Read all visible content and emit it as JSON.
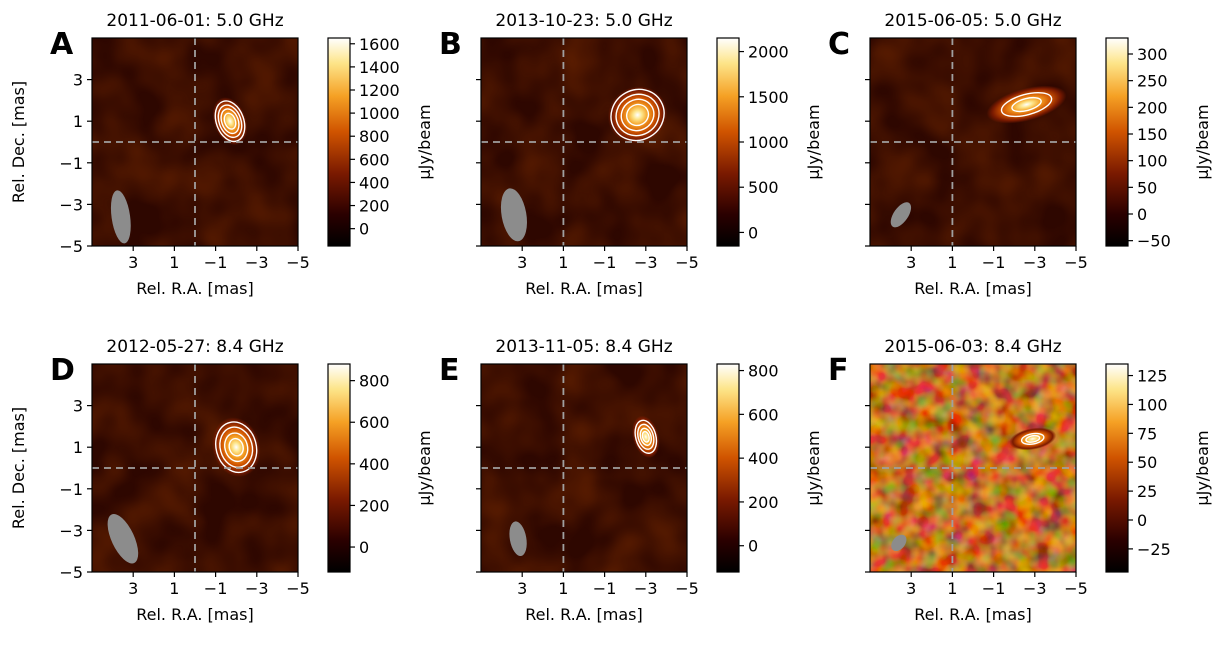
{
  "chart_data": [
    {
      "type": "heatmap",
      "panel": "A",
      "title": "2011-06-01:  5.0 GHz",
      "xlabel": "Rel. R.A. [mas]",
      "ylabel": "Rel. Dec. [mas]",
      "xlim": [
        5,
        -5
      ],
      "ylim": [
        -5,
        5
      ],
      "xticks": [
        "3",
        "1",
        "−1",
        "−3",
        "−5"
      ],
      "yticks": [
        "3",
        "1",
        "−1",
        "−3",
        "−5"
      ],
      "colorbar": {
        "label": "μJy/beam",
        "range": [
          -150,
          1650
        ],
        "ticks": [
          "0",
          "200",
          "400",
          "600",
          "800",
          "1000",
          "1200",
          "1400",
          "1600"
        ]
      },
      "peak": {
        "x": -1.7,
        "y": 1.0,
        "sx": 0.75,
        "sy": 1.15,
        "angle": -20
      },
      "beam": {
        "x": 3.6,
        "y": -3.6,
        "rx": 0.45,
        "ry": 1.3,
        "angle": -8
      },
      "crosshair": {
        "x": 0,
        "y": 0
      },
      "contour_levels": [
        0.15,
        0.3,
        0.5,
        0.75
      ]
    },
    {
      "type": "heatmap",
      "panel": "B",
      "title": "2013-10-23:  5.0 GHz",
      "xlabel": "Rel. R.A. [mas]",
      "ylabel": "",
      "xlim": [
        5,
        -5
      ],
      "ylim": [
        -5,
        5
      ],
      "xticks": [
        "3",
        "1",
        "−1",
        "−3",
        "−5"
      ],
      "yticks": [],
      "colorbar": {
        "label": "μJy/beam",
        "range": [
          -150,
          2150
        ],
        "ticks": [
          "0",
          "500",
          "1000",
          "1500",
          "2000"
        ]
      },
      "peak": {
        "x": -2.6,
        "y": 1.3,
        "sx": 1.4,
        "sy": 1.3,
        "angle": -30
      },
      "beam": {
        "x": 3.4,
        "y": -3.5,
        "rx": 0.6,
        "ry": 1.3,
        "angle": -10
      },
      "crosshair": {
        "x": 1.0,
        "y": 0
      },
      "contour_levels": [
        0.12,
        0.25,
        0.45,
        0.7
      ]
    },
    {
      "type": "heatmap",
      "panel": "C",
      "title": "2015-06-05:  5.0 GHz",
      "xlabel": "Rel. R.A. [mas]",
      "ylabel": "",
      "xlim": [
        5,
        -5
      ],
      "ylim": [
        -5,
        5
      ],
      "xticks": [
        "3",
        "1",
        "−1",
        "−3",
        "−5"
      ],
      "yticks": [],
      "colorbar": {
        "label": "μJy/beam",
        "range": [
          -60,
          330
        ],
        "ticks": [
          "−50",
          "0",
          "50",
          "100",
          "150",
          "200",
          "250",
          "300"
        ]
      },
      "peak": {
        "x": -2.6,
        "y": 1.8,
        "sx": 1.9,
        "sy": 0.75,
        "angle": -15
      },
      "beam": {
        "x": 3.5,
        "y": -3.5,
        "rx": 0.35,
        "ry": 0.7,
        "angle": 35
      },
      "crosshair": {
        "x": 1.0,
        "y": 0
      },
      "contour_levels": [
        0.35,
        0.7
      ]
    },
    {
      "type": "heatmap",
      "panel": "D",
      "title": "2012-05-27:  8.4 GHz",
      "xlabel": "Rel. R.A. [mas]",
      "ylabel": "Rel. Dec. [mas]",
      "xlim": [
        5,
        -5
      ],
      "ylim": [
        -5,
        5
      ],
      "xticks": [
        "3",
        "1",
        "−1",
        "−3",
        "−5"
      ],
      "yticks": [
        "3",
        "1",
        "−1",
        "−3",
        "−5"
      ],
      "colorbar": {
        "label": "μJy/beam",
        "range": [
          -120,
          880
        ],
        "ticks": [
          "0",
          "200",
          "400",
          "600",
          "800"
        ]
      },
      "peak": {
        "x": -2.0,
        "y": 1.0,
        "sx": 1.1,
        "sy": 1.4,
        "angle": -15
      },
      "beam": {
        "x": 3.5,
        "y": -3.4,
        "rx": 0.55,
        "ry": 1.3,
        "angle": -25
      },
      "crosshair": {
        "x": 0,
        "y": 0
      },
      "contour_levels": [
        0.15,
        0.3,
        0.55,
        0.8
      ]
    },
    {
      "type": "heatmap",
      "panel": "E",
      "title": "2013-11-05:  8.4 GHz",
      "xlabel": "Rel. R.A. [mas]",
      "ylabel": "",
      "xlim": [
        5,
        -5
      ],
      "ylim": [
        -5,
        5
      ],
      "xticks": [
        "3",
        "1",
        "−1",
        "−3",
        "−5"
      ],
      "yticks": [],
      "colorbar": {
        "label": "μJy/beam",
        "range": [
          -120,
          830
        ],
        "ticks": [
          "0",
          "200",
          "400",
          "600",
          "800"
        ]
      },
      "peak": {
        "x": -3.0,
        "y": 1.5,
        "sx": 0.6,
        "sy": 1.0,
        "angle": -15
      },
      "beam": {
        "x": 3.2,
        "y": -3.4,
        "rx": 0.4,
        "ry": 0.85,
        "angle": -10
      },
      "crosshair": {
        "x": 1.0,
        "y": 0
      },
      "contour_levels": [
        0.2,
        0.4,
        0.65,
        0.85
      ]
    },
    {
      "type": "heatmap",
      "panel": "F",
      "title": "2015-06-03:  8.4 GHz",
      "xlabel": "Rel. R.A. [mas]",
      "ylabel": "",
      "xlim": [
        5,
        -5
      ],
      "ylim": [
        -5,
        5
      ],
      "xticks": [
        "3",
        "1",
        "−1",
        "−3",
        "−5"
      ],
      "yticks": [],
      "colorbar": {
        "label": "μJy/beam",
        "range": [
          -45,
          135
        ],
        "ticks": [
          "−25",
          "0",
          "25",
          "50",
          "75",
          "100",
          "125"
        ]
      },
      "peak": {
        "x": -2.9,
        "y": 1.4,
        "sx": 1.1,
        "sy": 0.5,
        "angle": -10
      },
      "beam": {
        "x": 3.6,
        "y": -3.6,
        "rx": 0.3,
        "ry": 0.45,
        "angle": 40
      },
      "crosshair": {
        "x": 1.0,
        "y": 0
      },
      "contour_levels": [
        0.55,
        0.8
      ]
    }
  ]
}
